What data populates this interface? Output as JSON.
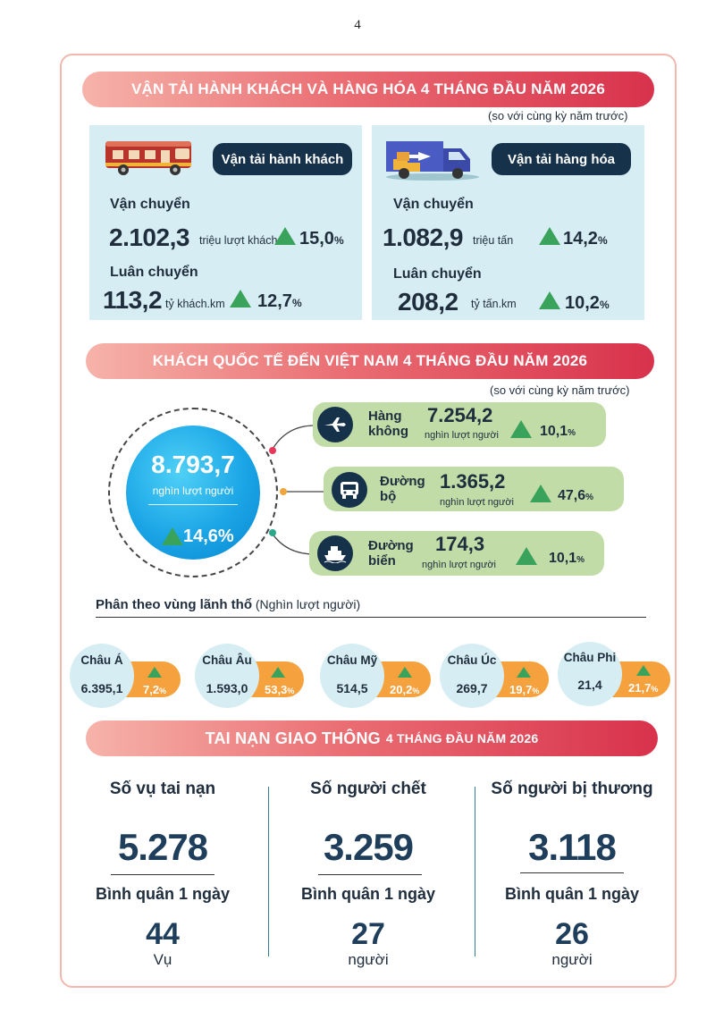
{
  "page_number": "4",
  "transport": {
    "title": "VẬN TẢI HÀNH KHÁCH VÀ HÀNG HÓA 4 THÁNG ĐẦU NĂM 2026",
    "note": "(so với cùng kỳ năm trước)",
    "passenger": {
      "label": "Vận tải hành khách",
      "carried_label": "Vận chuyển",
      "carried_value": "2.102,3",
      "carried_unit": "triệu lượt khách",
      "carried_pct": "15,0",
      "rotation_label": "Luân chuyển",
      "rotation_value": "113,2",
      "rotation_unit": "tỷ khách.km",
      "rotation_pct": "12,7"
    },
    "freight": {
      "label": "Vận tải hàng hóa",
      "carried_label": "Vận chuyển",
      "carried_value": "1.082,9",
      "carried_unit": "triệu tấn",
      "carried_pct": "14,2",
      "rotation_label": "Luân chuyển",
      "rotation_value": "208,2",
      "rotation_unit": "tỷ tấn.km",
      "rotation_pct": "10,2"
    },
    "pct_sign": "%"
  },
  "visitors": {
    "title": "KHÁCH QUỐC TẾ ĐẾN VIỆT NAM 4 THÁNG ĐẦU NĂM 2026",
    "note": "(so với cùng kỳ năm trước)",
    "total_value": "8.793,7",
    "total_unit": "nghìn lượt người",
    "total_pct": "14,6%",
    "modes": [
      {
        "name_line1": "Hàng",
        "name_line2": "không",
        "value": "7.254,2",
        "unit": "nghìn lượt người",
        "pct": "10,1",
        "icon": "airplane-icon"
      },
      {
        "name_line1": "Đường",
        "name_line2": "bộ",
        "value": "1.365,2",
        "unit": "nghìn lượt người",
        "pct": "47,6",
        "icon": "bus-icon"
      },
      {
        "name_line1": "Đường",
        "name_line2": "biển",
        "value": "174,3",
        "unit": "nghìn lượt người",
        "pct": "10,1",
        "icon": "ship-icon"
      }
    ],
    "pct_sign": "%",
    "region_title": "Phân theo vùng lãnh thổ",
    "region_unit": "(Nghìn lượt người)",
    "regions": [
      {
        "name": "Châu Á",
        "value": "6.395,1",
        "pct": "7,2"
      },
      {
        "name": "Châu Âu",
        "value": "1.593,0",
        "pct": "53,3"
      },
      {
        "name": "Châu Mỹ",
        "value": "514,5",
        "pct": "20,2"
      },
      {
        "name": "Châu Úc",
        "value": "269,7",
        "pct": "19,7"
      },
      {
        "name": "Châu Phi",
        "value": "21,4",
        "pct": "21,7"
      }
    ]
  },
  "accidents": {
    "title_main": "TAI NẠN GIAO THÔNG",
    "title_rest": "4 THÁNG ĐẦU NĂM 2026",
    "avg_label": "Bình quân 1 ngày",
    "columns": [
      {
        "label": "Số vụ tai nạn",
        "value": "5.278",
        "avg": "44",
        "unit": "Vụ"
      },
      {
        "label": "Số người chết",
        "value": "3.259",
        "avg": "27",
        "unit": "người"
      },
      {
        "label": "Số người bị thương",
        "value": "3.118",
        "avg": "26",
        "unit": "người"
      }
    ]
  },
  "colors": {
    "banner_gradient": [
      "#f6b3aa",
      "#ea6e73",
      "#d8324c"
    ],
    "panel": "#d6eef3",
    "pill": "#16324a",
    "up_arrow": "#3aa35b",
    "mode_bg": "#c2dca8",
    "region_accent": "#f5a23e",
    "circle": "#1aa5e6"
  }
}
